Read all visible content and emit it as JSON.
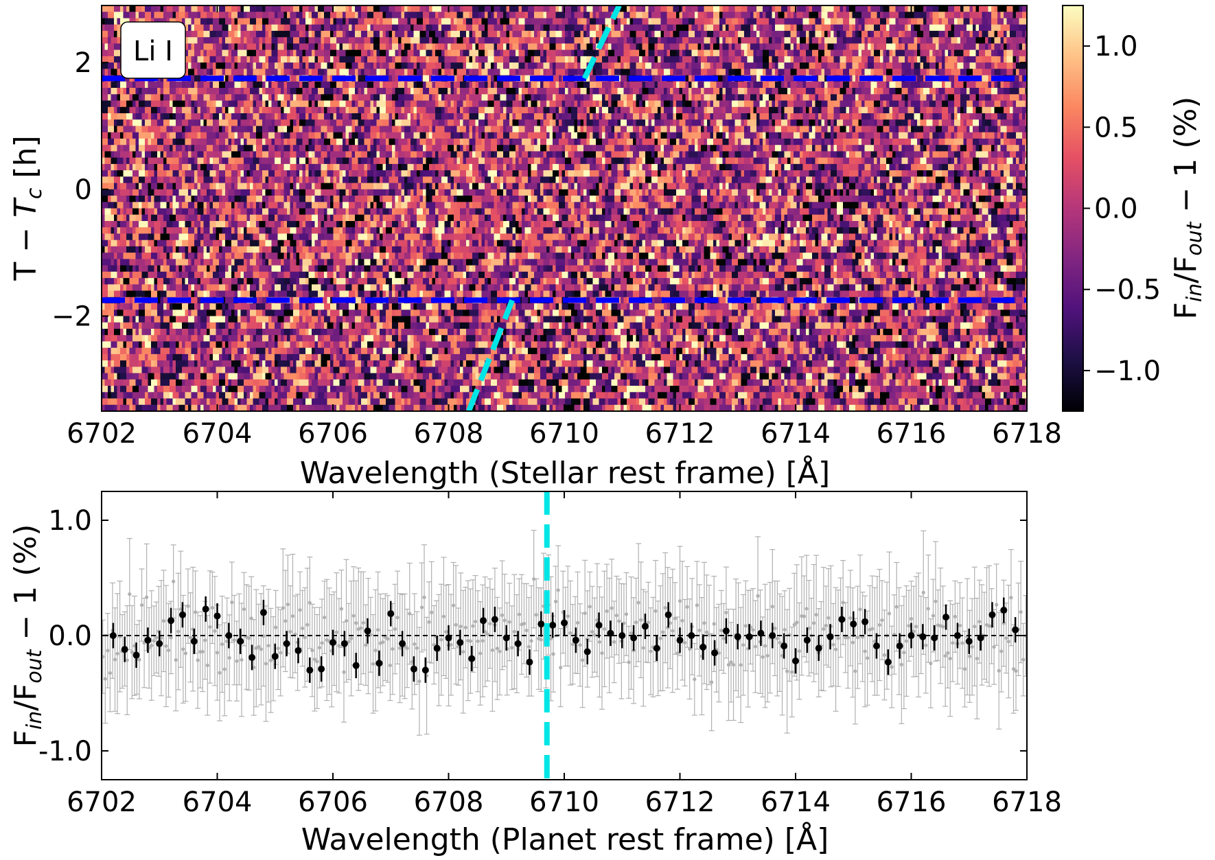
{
  "chart_data": [
    {
      "type": "heatmap",
      "label_box": "Li I",
      "xlabel": "Wavelength (Stellar rest frame) [Å]",
      "ylabel": "T − T_c [h]",
      "xlim": [
        6702,
        6718
      ],
      "ylim": [
        -3.5,
        2.9
      ],
      "xticks": [
        "6702",
        "6704",
        "6706",
        "6708",
        "6710",
        "6712",
        "6714",
        "6716",
        "6718"
      ],
      "yticks": [
        "−2",
        "0",
        "2"
      ],
      "ytick_values": [
        -2,
        0,
        2
      ],
      "colormap": "magma",
      "colorbar": {
        "label": "F_in/F_out − 1 (%)",
        "range": [
          -1.25,
          1.25
        ],
        "ticks": [
          "−1.0",
          "−0.5",
          "0.0",
          "0.5",
          "1.0"
        ],
        "tick_values": [
          -1.0,
          -0.5,
          0.0,
          0.5,
          1.0
        ]
      },
      "transit_contacts": {
        "times": [
          -1.75,
          1.75
        ],
        "color": "#0000ff",
        "style": "dashed"
      },
      "planet_trace": {
        "color": "#00e5e5",
        "style": "dashed",
        "segments": [
          {
            "x": [
              6708.35,
              6709.1
            ],
            "y": [
              -3.5,
              -1.75
            ]
          },
          {
            "x": [
              6710.35,
              6710.95
            ],
            "y": [
              1.75,
              2.9
            ]
          }
        ]
      }
    },
    {
      "type": "scatter",
      "xlabel": "Wavelength (Planet rest frame) [Å]",
      "ylabel": "F_in/F_out − 1 (%)",
      "xlim": [
        6702,
        6718
      ],
      "ylim": [
        -1.25,
        1.25
      ],
      "xticks": [
        "6702",
        "6704",
        "6706",
        "6708",
        "6710",
        "6712",
        "6714",
        "6716",
        "6718"
      ],
      "yticks": [
        "-1.0",
        "0.0",
        "1.0"
      ],
      "ytick_values": [
        -1.0,
        0.0,
        1.0
      ],
      "zero_line": 0.0,
      "line_center": 6709.7,
      "line_center_color": "#00e5e5",
      "binned_color": "#000000",
      "unbinned_color": "#b0b0b0",
      "binned": {
        "x": [
          6702.2,
          6702.4,
          6702.6,
          6702.8,
          6703.0,
          6703.2,
          6703.4,
          6703.6,
          6703.8,
          6704.0,
          6704.2,
          6704.4,
          6704.6,
          6704.8,
          6705.0,
          6705.2,
          6705.4,
          6705.6,
          6705.8,
          6706.0,
          6706.2,
          6706.4,
          6706.6,
          6706.8,
          6707.0,
          6707.2,
          6707.4,
          6707.6,
          6707.8,
          6708.0,
          6708.2,
          6708.4,
          6708.6,
          6708.8,
          6709.0,
          6709.2,
          6709.4,
          6709.6,
          6709.8,
          6710.0,
          6710.2,
          6710.4,
          6710.6,
          6710.8,
          6711.0,
          6711.2,
          6711.4,
          6711.6,
          6711.8,
          6712.0,
          6712.2,
          6712.4,
          6712.6,
          6712.8,
          6713.0,
          6713.2,
          6713.4,
          6713.6,
          6713.8,
          6714.0,
          6714.2,
          6714.4,
          6714.6,
          6714.8,
          6715.0,
          6715.2,
          6715.4,
          6715.6,
          6715.8,
          6716.0,
          6716.2,
          6716.4,
          6716.6,
          6716.8,
          6717.0,
          6717.2,
          6717.4,
          6717.6,
          6717.8
        ],
        "y": [
          0.0,
          -0.12,
          -0.17,
          -0.04,
          -0.07,
          0.13,
          0.18,
          -0.05,
          0.23,
          0.17,
          0.0,
          -0.05,
          -0.19,
          0.2,
          -0.18,
          -0.07,
          -0.13,
          -0.3,
          -0.29,
          -0.06,
          -0.07,
          -0.26,
          0.04,
          -0.24,
          0.19,
          -0.07,
          -0.29,
          -0.3,
          -0.11,
          -0.02,
          -0.06,
          -0.2,
          0.13,
          0.14,
          -0.02,
          -0.07,
          -0.23,
          0.1,
          0.09,
          0.11,
          -0.04,
          -0.14,
          0.09,
          0.02,
          0.0,
          -0.02,
          0.08,
          -0.11,
          0.18,
          -0.04,
          0.0,
          -0.1,
          -0.15,
          0.04,
          -0.01,
          -0.01,
          0.02,
          0.0,
          -0.09,
          -0.22,
          -0.04,
          -0.11,
          -0.01,
          0.14,
          0.1,
          0.12,
          -0.09,
          -0.23,
          -0.09,
          0.0,
          -0.01,
          -0.02,
          0.16,
          0.0,
          -0.05,
          -0.02,
          0.18,
          0.22,
          0.05
        ],
        "yerr": 0.11
      },
      "unbinned_yerr": 0.4
    }
  ]
}
